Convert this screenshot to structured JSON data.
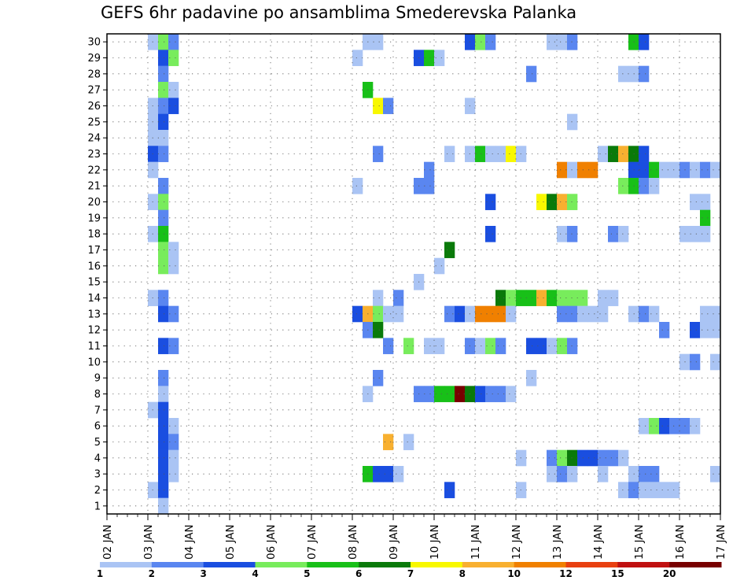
{
  "chart_data": {
    "type": "heatmap",
    "title": "GEFS 6hr padavine po ansamblima Smederevska Palanka",
    "x_ticks": [
      "02 JAN",
      "03 JAN",
      "04 JAN",
      "05 JAN",
      "06 JAN",
      "07 JAN",
      "08 JAN",
      "09 JAN",
      "10 JAN",
      "11 JAN",
      "12 JAN",
      "13 JAN",
      "14 JAN",
      "15 JAN",
      "16 JAN",
      "17 JAN"
    ],
    "y_ticks": [
      1,
      2,
      3,
      4,
      5,
      6,
      7,
      8,
      9,
      10,
      11,
      12,
      13,
      14,
      15,
      16,
      17,
      18,
      19,
      20,
      21,
      22,
      23,
      24,
      25,
      26,
      27,
      28,
      29,
      30
    ],
    "xlim": [
      0,
      60
    ],
    "ylim": [
      0.5,
      30.5
    ],
    "grid": true,
    "colorbar": {
      "labels": [
        "1",
        "2",
        "3",
        "4",
        "5",
        "6",
        "7",
        "8",
        "10",
        "12",
        "15",
        "20"
      ],
      "colors": [
        "#aac4f4",
        "#5a86f0",
        "#1a4ee0",
        "#78ec5c",
        "#18c018",
        "#0a7a0a",
        "#f8f800",
        "#f8b030",
        "#f08000",
        "#e84010",
        "#c01010",
        "#780000"
      ]
    },
    "cells": [
      [
        30,
        5,
        1
      ],
      [
        30,
        6,
        4
      ],
      [
        30,
        7,
        2
      ],
      [
        30,
        26,
        1
      ],
      [
        30,
        27,
        1
      ],
      [
        30,
        36,
        3
      ],
      [
        30,
        37,
        4
      ],
      [
        30,
        38,
        2
      ],
      [
        30,
        44,
        1
      ],
      [
        30,
        45,
        1
      ],
      [
        30,
        46,
        2
      ],
      [
        30,
        52,
        5
      ],
      [
        30,
        53,
        3
      ],
      [
        29,
        6,
        3
      ],
      [
        29,
        7,
        4
      ],
      [
        29,
        25,
        1
      ],
      [
        29,
        31,
        3
      ],
      [
        29,
        32,
        5
      ],
      [
        29,
        33,
        1
      ],
      [
        28,
        6,
        2
      ],
      [
        28,
        42,
        2
      ],
      [
        28,
        51,
        1
      ],
      [
        28,
        52,
        1
      ],
      [
        28,
        53,
        2
      ],
      [
        27,
        6,
        4
      ],
      [
        27,
        7,
        1
      ],
      [
        27,
        26,
        5
      ],
      [
        26,
        5,
        1
      ],
      [
        26,
        6,
        2
      ],
      [
        26,
        7,
        3
      ],
      [
        26,
        27,
        7
      ],
      [
        26,
        28,
        2
      ],
      [
        26,
        36,
        1
      ],
      [
        25,
        5,
        1
      ],
      [
        25,
        6,
        3
      ],
      [
        25,
        46,
        1
      ],
      [
        24,
        5,
        1
      ],
      [
        24,
        6,
        1
      ],
      [
        23,
        5,
        3
      ],
      [
        23,
        6,
        2
      ],
      [
        23,
        27,
        2
      ],
      [
        23,
        34,
        1
      ],
      [
        23,
        36,
        1
      ],
      [
        23,
        37,
        5
      ],
      [
        23,
        38,
        1
      ],
      [
        23,
        39,
        1
      ],
      [
        23,
        40,
        7
      ],
      [
        23,
        41,
        1
      ],
      [
        23,
        49,
        1
      ],
      [
        23,
        50,
        6
      ],
      [
        23,
        51,
        8
      ],
      [
        23,
        52,
        6
      ],
      [
        23,
        53,
        3
      ],
      [
        22,
        5,
        1
      ],
      [
        22,
        32,
        2
      ],
      [
        22,
        45,
        9
      ],
      [
        22,
        46,
        1
      ],
      [
        22,
        47,
        9
      ],
      [
        22,
        48,
        9
      ],
      [
        22,
        52,
        3
      ],
      [
        22,
        53,
        3
      ],
      [
        22,
        54,
        5
      ],
      [
        22,
        55,
        1
      ],
      [
        22,
        56,
        1
      ],
      [
        22,
        57,
        2
      ],
      [
        22,
        58,
        1
      ],
      [
        22,
        59,
        2
      ],
      [
        22,
        60,
        1
      ],
      [
        21,
        6,
        2
      ],
      [
        21,
        25,
        1
      ],
      [
        21,
        31,
        2
      ],
      [
        21,
        32,
        2
      ],
      [
        21,
        51,
        4
      ],
      [
        21,
        52,
        5
      ],
      [
        21,
        53,
        2
      ],
      [
        21,
        54,
        1
      ],
      [
        20,
        5,
        1
      ],
      [
        20,
        6,
        4
      ],
      [
        20,
        38,
        3
      ],
      [
        20,
        43,
        7
      ],
      [
        20,
        44,
        6
      ],
      [
        20,
        45,
        8
      ],
      [
        20,
        46,
        4
      ],
      [
        20,
        58,
        1
      ],
      [
        20,
        59,
        1
      ],
      [
        19,
        6,
        2
      ],
      [
        19,
        59,
        5
      ],
      [
        18,
        5,
        1
      ],
      [
        18,
        6,
        5
      ],
      [
        18,
        38,
        3
      ],
      [
        18,
        45,
        1
      ],
      [
        18,
        46,
        2
      ],
      [
        18,
        50,
        2
      ],
      [
        18,
        51,
        1
      ],
      [
        18,
        57,
        1
      ],
      [
        18,
        58,
        1
      ],
      [
        18,
        59,
        1
      ],
      [
        17,
        6,
        4
      ],
      [
        17,
        7,
        1
      ],
      [
        17,
        34,
        6
      ],
      [
        16,
        6,
        4
      ],
      [
        16,
        7,
        1
      ],
      [
        16,
        33,
        1
      ],
      [
        15,
        31,
        1
      ],
      [
        14,
        5,
        1
      ],
      [
        14,
        6,
        2
      ],
      [
        14,
        27,
        1
      ],
      [
        14,
        29,
        2
      ],
      [
        14,
        39,
        6
      ],
      [
        14,
        40,
        4
      ],
      [
        14,
        41,
        5
      ],
      [
        14,
        42,
        5
      ],
      [
        14,
        43,
        8
      ],
      [
        14,
        44,
        5
      ],
      [
        14,
        45,
        4
      ],
      [
        14,
        46,
        4
      ],
      [
        14,
        47,
        4
      ],
      [
        14,
        49,
        1
      ],
      [
        14,
        50,
        1
      ],
      [
        13,
        6,
        3
      ],
      [
        13,
        7,
        2
      ],
      [
        13,
        25,
        3
      ],
      [
        13,
        26,
        8
      ],
      [
        13,
        27,
        4
      ],
      [
        13,
        28,
        1
      ],
      [
        13,
        29,
        1
      ],
      [
        13,
        34,
        2
      ],
      [
        13,
        35,
        3
      ],
      [
        13,
        36,
        1
      ],
      [
        13,
        37,
        9
      ],
      [
        13,
        38,
        9
      ],
      [
        13,
        39,
        9
      ],
      [
        13,
        40,
        1
      ],
      [
        13,
        45,
        2
      ],
      [
        13,
        46,
        2
      ],
      [
        13,
        47,
        1
      ],
      [
        13,
        48,
        1
      ],
      [
        13,
        49,
        1
      ],
      [
        13,
        52,
        1
      ],
      [
        13,
        53,
        2
      ],
      [
        13,
        54,
        1
      ],
      [
        13,
        59,
        1
      ],
      [
        13,
        60,
        1
      ],
      [
        12,
        26,
        2
      ],
      [
        12,
        27,
        6
      ],
      [
        12,
        55,
        2
      ],
      [
        12,
        58,
        3
      ],
      [
        12,
        59,
        1
      ],
      [
        12,
        60,
        1
      ],
      [
        11,
        6,
        3
      ],
      [
        11,
        7,
        2
      ],
      [
        11,
        28,
        2
      ],
      [
        11,
        30,
        4
      ],
      [
        11,
        32,
        1
      ],
      [
        11,
        33,
        1
      ],
      [
        11,
        36,
        2
      ],
      [
        11,
        37,
        1
      ],
      [
        11,
        38,
        4
      ],
      [
        11,
        39,
        2
      ],
      [
        11,
        42,
        3
      ],
      [
        11,
        43,
        3
      ],
      [
        11,
        44,
        1
      ],
      [
        11,
        45,
        4
      ],
      [
        11,
        46,
        2
      ],
      [
        10,
        57,
        1
      ],
      [
        10,
        58,
        2
      ],
      [
        10,
        60,
        1
      ],
      [
        9,
        6,
        2
      ],
      [
        9,
        27,
        2
      ],
      [
        9,
        42,
        1
      ],
      [
        8,
        6,
        1
      ],
      [
        8,
        26,
        1
      ],
      [
        8,
        31,
        2
      ],
      [
        8,
        32,
        2
      ],
      [
        8,
        33,
        5
      ],
      [
        8,
        34,
        5
      ],
      [
        8,
        35,
        12
      ],
      [
        8,
        36,
        6
      ],
      [
        8,
        37,
        3
      ],
      [
        8,
        38,
        2
      ],
      [
        8,
        39,
        2
      ],
      [
        8,
        40,
        1
      ],
      [
        7,
        5,
        1
      ],
      [
        7,
        6,
        3
      ],
      [
        6,
        6,
        3
      ],
      [
        6,
        7,
        1
      ],
      [
        6,
        53,
        1
      ],
      [
        6,
        54,
        4
      ],
      [
        6,
        55,
        3
      ],
      [
        6,
        56,
        2
      ],
      [
        6,
        57,
        2
      ],
      [
        6,
        58,
        1
      ],
      [
        5,
        6,
        3
      ],
      [
        5,
        7,
        2
      ],
      [
        5,
        28,
        8
      ],
      [
        5,
        30,
        1
      ],
      [
        4,
        6,
        3
      ],
      [
        4,
        7,
        1
      ],
      [
        4,
        41,
        1
      ],
      [
        4,
        44,
        2
      ],
      [
        4,
        45,
        4
      ],
      [
        4,
        46,
        6
      ],
      [
        4,
        47,
        3
      ],
      [
        4,
        48,
        3
      ],
      [
        4,
        49,
        2
      ],
      [
        4,
        50,
        2
      ],
      [
        4,
        51,
        1
      ],
      [
        3,
        6,
        3
      ],
      [
        3,
        7,
        1
      ],
      [
        3,
        26,
        5
      ],
      [
        3,
        27,
        3
      ],
      [
        3,
        28,
        3
      ],
      [
        3,
        29,
        1
      ],
      [
        3,
        44,
        1
      ],
      [
        3,
        45,
        2
      ],
      [
        3,
        46,
        1
      ],
      [
        3,
        49,
        1
      ],
      [
        3,
        52,
        1
      ],
      [
        3,
        53,
        2
      ],
      [
        3,
        54,
        2
      ],
      [
        3,
        60,
        1
      ],
      [
        2,
        5,
        1
      ],
      [
        2,
        6,
        3
      ],
      [
        2,
        34,
        3
      ],
      [
        2,
        41,
        1
      ],
      [
        2,
        51,
        1
      ],
      [
        2,
        52,
        2
      ],
      [
        2,
        53,
        1
      ],
      [
        2,
        54,
        1
      ],
      [
        2,
        55,
        1
      ],
      [
        2,
        56,
        1
      ],
      [
        1,
        6,
        1
      ]
    ]
  }
}
